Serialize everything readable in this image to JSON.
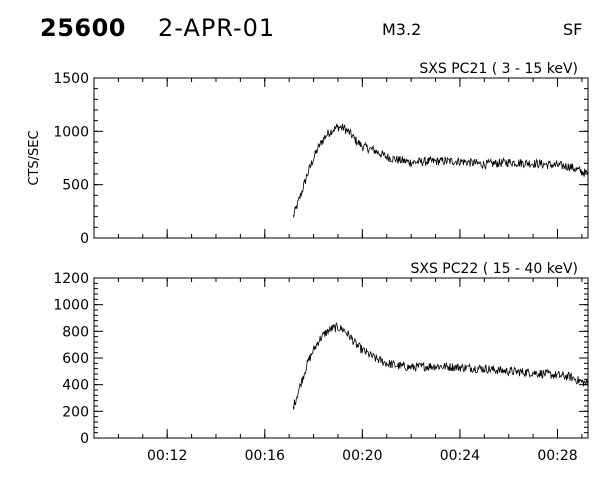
{
  "header": {
    "event_id": "25600",
    "date": "2-APR-01",
    "flare_class": "M3.2",
    "source": "SF"
  },
  "chart_data": [
    {
      "type": "line",
      "title": "SXS PC21  (  3 - 15 keV)",
      "ylabel": "CTS/SEC",
      "xlabel": "",
      "xlim": [
        "00:09:00",
        "00:29:15"
      ],
      "ylim": [
        0,
        1500
      ],
      "yticks": [
        0,
        500,
        1000,
        1500
      ],
      "ytick_labels": [
        "0",
        "500",
        "1000",
        "1500"
      ],
      "xticks": [
        "00:12",
        "00:16",
        "00:20",
        "00:24",
        "00:28"
      ],
      "xtick_labels": [
        "",
        "",
        "",
        "",
        ""
      ],
      "grid": false,
      "series": [
        {
          "x": [
            "00:17:10",
            "00:17:30",
            "00:17:45",
            "00:18:00",
            "00:18:15",
            "00:18:30",
            "00:18:45",
            "00:19:00",
            "00:19:15",
            "00:19:30",
            "00:19:45",
            "00:20:00",
            "00:20:30",
            "00:21:00",
            "00:21:30",
            "00:22:00",
            "00:23:00",
            "00:24:00",
            "00:25:00",
            "00:26:00",
            "00:27:00",
            "00:28:00",
            "00:28:30",
            "00:29:00",
            "00:29:15"
          ],
          "y": [
            200,
            420,
            600,
            750,
            870,
            960,
            1010,
            1040,
            1030,
            980,
            910,
            860,
            820,
            760,
            730,
            710,
            720,
            720,
            690,
            710,
            700,
            680,
            670,
            620,
            600
          ]
        }
      ]
    },
    {
      "type": "line",
      "title": "SXS PC22  ( 15 - 40 keV)",
      "ylabel": "",
      "xlabel": "",
      "xlim": [
        "00:09:00",
        "00:29:15"
      ],
      "ylim": [
        0,
        1200
      ],
      "yticks": [
        0,
        200,
        400,
        600,
        800,
        1000,
        1200
      ],
      "ytick_labels": [
        "0",
        "200",
        "400",
        "600",
        "800",
        "1000",
        "1200"
      ],
      "xticks": [
        "00:12",
        "00:16",
        "00:20",
        "00:24",
        "00:28"
      ],
      "xtick_labels": [
        "00:12",
        "00:16",
        "00:20",
        "00:24",
        "00:28"
      ],
      "grid": false,
      "series": [
        {
          "x": [
            "00:17:10",
            "00:17:30",
            "00:17:45",
            "00:18:00",
            "00:18:15",
            "00:18:30",
            "00:18:45",
            "00:19:00",
            "00:19:15",
            "00:19:30",
            "00:19:45",
            "00:20:00",
            "00:20:30",
            "00:21:00",
            "00:21:30",
            "00:22:00",
            "00:23:00",
            "00:24:00",
            "00:25:00",
            "00:26:00",
            "00:27:00",
            "00:28:00",
            "00:28:30",
            "00:29:00",
            "00:29:15"
          ],
          "y": [
            230,
            420,
            560,
            660,
            740,
            790,
            820,
            830,
            810,
            760,
            700,
            660,
            600,
            560,
            540,
            530,
            540,
            530,
            520,
            500,
            490,
            470,
            460,
            420,
            410
          ]
        }
      ]
    }
  ]
}
